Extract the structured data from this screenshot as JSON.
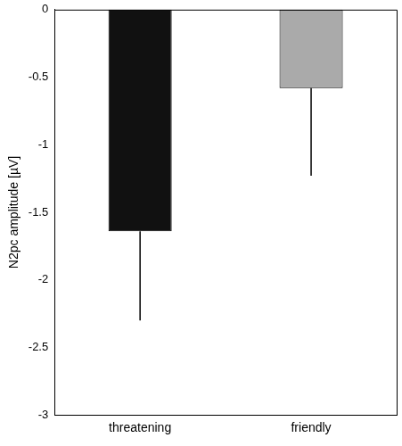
{
  "chart_data": {
    "type": "bar",
    "y_label": "N2pc amplitude [µV]",
    "categories": [
      "threatening",
      "friendly"
    ],
    "values": [
      -1.64,
      -0.58
    ],
    "errors": [
      0.66,
      0.65
    ],
    "colors": [
      "#111111",
      "#aaaaaa"
    ],
    "ylim": [
      -3,
      0
    ],
    "yticks": [
      -3,
      -2.5,
      -2,
      -1.5,
      -1,
      -0.5,
      0
    ],
    "grid": false
  }
}
